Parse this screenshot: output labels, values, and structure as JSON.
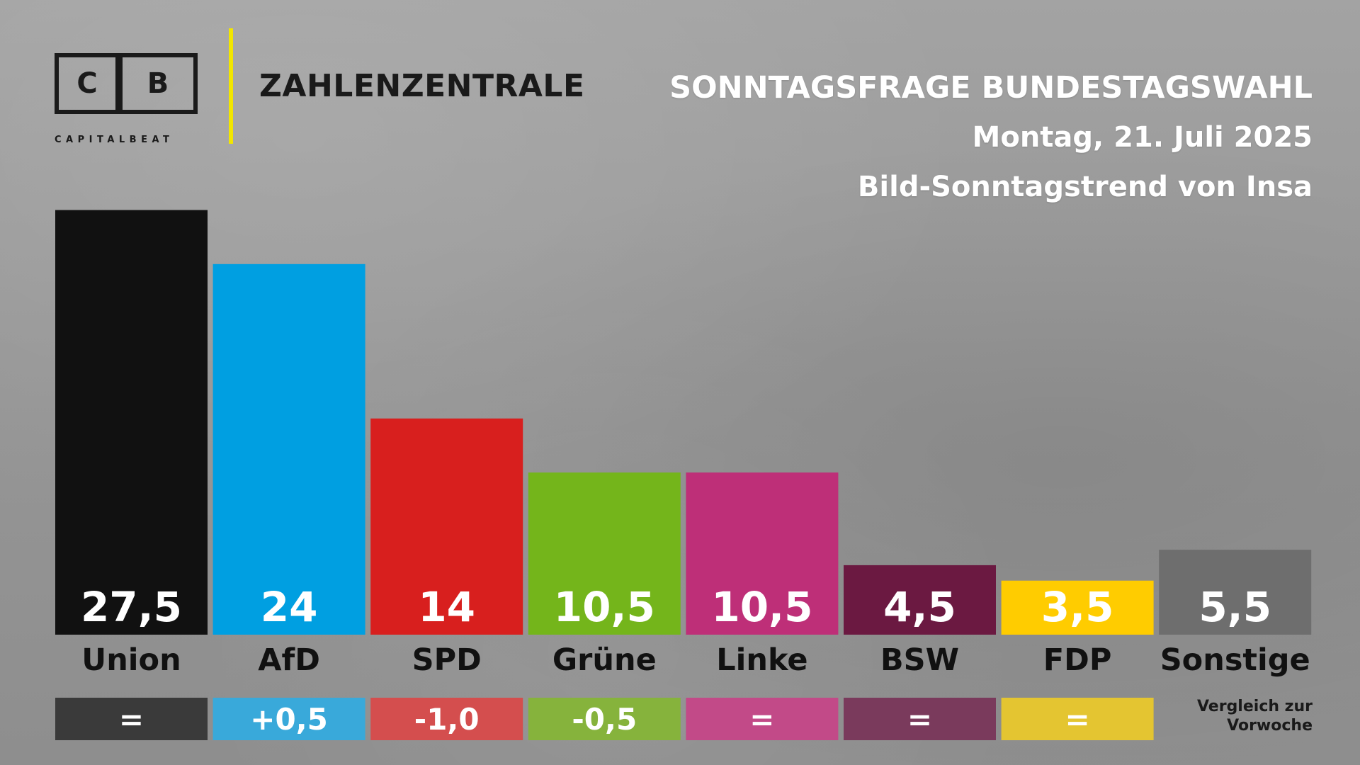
{
  "brand": {
    "logo_letters": [
      "C",
      "B"
    ],
    "logo_word": "CAPITALBEAT",
    "name": "ZAHLENZENTRALE",
    "accent_color": "#f2e600"
  },
  "header": {
    "title": "SONNTAGSFRAGE BUNDESTAGSWAHL",
    "date": "Montag, 21. Juli 2025",
    "source": "Bild-Sonntagstrend von Insa"
  },
  "chart_data": {
    "type": "bar",
    "categories": [
      "Union",
      "AfD",
      "SPD",
      "Grüne",
      "Linke",
      "BSW",
      "FDP",
      "Sonstige"
    ],
    "values": [
      27.5,
      24,
      14,
      10.5,
      10.5,
      4.5,
      3.5,
      5.5
    ],
    "value_labels": [
      "27,5",
      "24",
      "14",
      "10,5",
      "10,5",
      "4,5",
      "3,5",
      "5,5"
    ],
    "changes": [
      "=",
      "+0,5",
      "-1,0",
      "-0,5",
      "=",
      "=",
      "="
    ],
    "colors": [
      "#111111",
      "#009fe1",
      "#d81f1e",
      "#74b51b",
      "#be2f78",
      "#6b1941",
      "#ffcc00",
      "#6e6e6e"
    ],
    "change_colors": [
      "#3a3a3a",
      "#39a9da",
      "#d44e4e",
      "#86b33c",
      "#c24a88",
      "#7a3a5c",
      "#e4c531"
    ],
    "comparison_note": [
      "Vergleich zur",
      "Vorwoche"
    ],
    "grid": false,
    "legend": "none"
  }
}
